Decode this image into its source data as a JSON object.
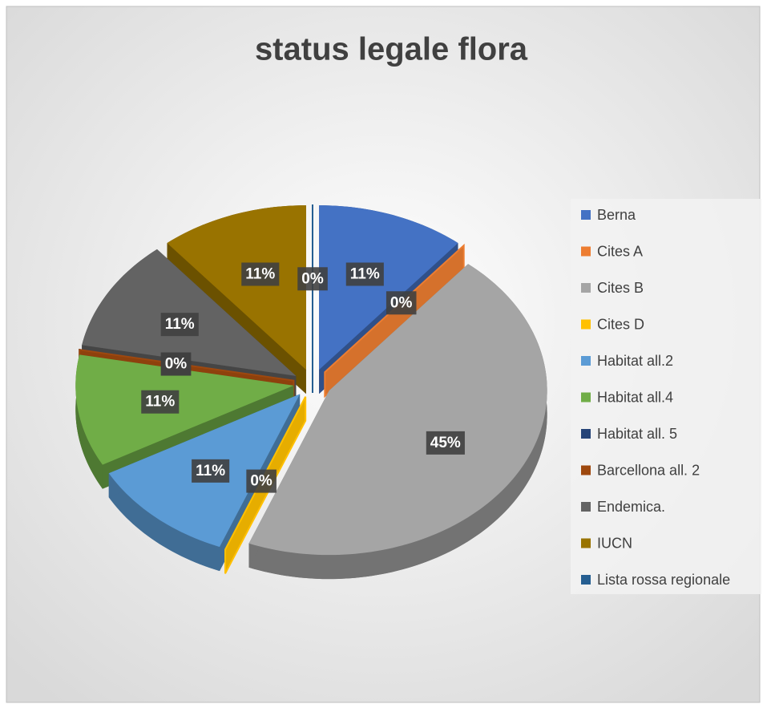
{
  "chart_data": {
    "type": "pie",
    "title": "status legale flora",
    "categories": [
      "Berna",
      "Cites A",
      "Cites B",
      "Cites D",
      "Habitat all.2",
      "Habitat all.4",
      "Habitat all. 5",
      "Barcellona all. 2",
      "Endemica.",
      "IUCN",
      "Lista rossa regionale"
    ],
    "values": [
      11,
      0,
      45,
      0,
      11,
      11,
      0,
      0,
      11,
      11,
      0
    ],
    "value_labels": [
      "11%",
      "0%",
      "45%",
      "0%",
      "11%",
      "11%",
      "0%",
      "0%",
      "11%",
      "11%",
      "0%"
    ],
    "colors": [
      "#4472c4",
      "#ed7d31",
      "#a5a5a5",
      "#ffc000",
      "#5b9bd5",
      "#70ad47",
      "#264478",
      "#9e480e",
      "#636363",
      "#997300",
      "#255e91"
    ],
    "legend": "right"
  }
}
